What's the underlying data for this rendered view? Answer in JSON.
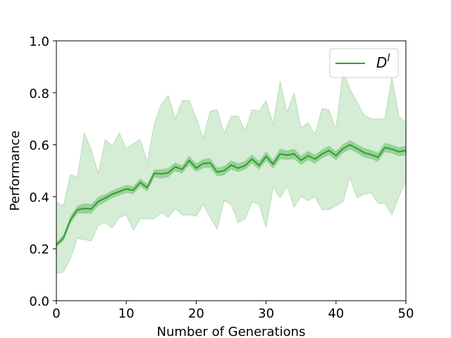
{
  "chart_data": {
    "type": "line",
    "title": "",
    "xlabel": "Number of Generations",
    "ylabel": "Performance",
    "xlim": [
      0,
      50
    ],
    "ylim": [
      0.0,
      1.0
    ],
    "xticks": [
      "0",
      "10",
      "20",
      "30",
      "40",
      "50"
    ],
    "yticks": [
      "0.0",
      "0.2",
      "0.4",
      "0.6",
      "0.8",
      "1.0"
    ],
    "grid": false,
    "legend_position": "top-right",
    "series": [
      {
        "name": "D",
        "name_superscript": "l",
        "color": "#2ca02c",
        "x": [
          0,
          1,
          2,
          3,
          4,
          5,
          6,
          7,
          8,
          9,
          10,
          11,
          12,
          13,
          14,
          15,
          16,
          17,
          18,
          19,
          20,
          21,
          22,
          23,
          24,
          25,
          26,
          27,
          28,
          29,
          30,
          31,
          32,
          33,
          34,
          35,
          36,
          37,
          38,
          39,
          40,
          41,
          42,
          43,
          44,
          45,
          46,
          47,
          48,
          49,
          50
        ],
        "mean": [
          0.215,
          0.24,
          0.31,
          0.35,
          0.355,
          0.353,
          0.382,
          0.395,
          0.41,
          0.42,
          0.43,
          0.425,
          0.455,
          0.435,
          0.49,
          0.488,
          0.492,
          0.515,
          0.505,
          0.54,
          0.51,
          0.528,
          0.53,
          0.495,
          0.5,
          0.522,
          0.51,
          0.52,
          0.545,
          0.52,
          0.556,
          0.525,
          0.565,
          0.56,
          0.565,
          0.54,
          0.558,
          0.545,
          0.565,
          0.578,
          0.558,
          0.585,
          0.6,
          0.585,
          0.57,
          0.562,
          0.552,
          0.59,
          0.583,
          0.573,
          0.578
        ],
        "ci_lower": [
          0.205,
          0.23,
          0.295,
          0.335,
          0.335,
          0.335,
          0.365,
          0.38,
          0.395,
          0.405,
          0.415,
          0.41,
          0.44,
          0.42,
          0.475,
          0.47,
          0.475,
          0.498,
          0.49,
          0.522,
          0.495,
          0.51,
          0.512,
          0.478,
          0.483,
          0.505,
          0.495,
          0.505,
          0.528,
          0.505,
          0.538,
          0.508,
          0.545,
          0.542,
          0.545,
          0.522,
          0.54,
          0.528,
          0.548,
          0.56,
          0.54,
          0.568,
          0.582,
          0.568,
          0.552,
          0.545,
          0.535,
          0.572,
          0.566,
          0.556,
          0.56
        ],
        "ci_upper": [
          0.225,
          0.255,
          0.325,
          0.365,
          0.375,
          0.372,
          0.4,
          0.41,
          0.425,
          0.435,
          0.445,
          0.44,
          0.47,
          0.45,
          0.505,
          0.505,
          0.51,
          0.532,
          0.52,
          0.558,
          0.528,
          0.545,
          0.548,
          0.512,
          0.518,
          0.54,
          0.528,
          0.538,
          0.562,
          0.538,
          0.574,
          0.542,
          0.585,
          0.578,
          0.585,
          0.558,
          0.576,
          0.562,
          0.582,
          0.596,
          0.576,
          0.602,
          0.618,
          0.602,
          0.588,
          0.58,
          0.57,
          0.608,
          0.6,
          0.59,
          0.596
        ],
        "band_lower": [
          0.105,
          0.11,
          0.16,
          0.24,
          0.235,
          0.23,
          0.29,
          0.3,
          0.28,
          0.32,
          0.33,
          0.27,
          0.315,
          0.315,
          0.315,
          0.34,
          0.32,
          0.355,
          0.33,
          0.33,
          0.325,
          0.37,
          0.32,
          0.275,
          0.385,
          0.37,
          0.3,
          0.315,
          0.38,
          0.37,
          0.28,
          0.435,
          0.395,
          0.44,
          0.36,
          0.4,
          0.385,
          0.4,
          0.35,
          0.35,
          0.365,
          0.38,
          0.475,
          0.395,
          0.41,
          0.415,
          0.375,
          0.375,
          0.33,
          0.4,
          0.46
        ],
        "band_upper": [
          0.38,
          0.365,
          0.485,
          0.475,
          0.645,
          0.58,
          0.49,
          0.62,
          0.595,
          0.645,
          0.585,
          0.605,
          0.62,
          0.535,
          0.68,
          0.755,
          0.79,
          0.7,
          0.77,
          0.77,
          0.705,
          0.625,
          0.73,
          0.735,
          0.645,
          0.71,
          0.71,
          0.655,
          0.735,
          0.73,
          0.77,
          0.68,
          0.845,
          0.725,
          0.8,
          0.665,
          0.685,
          0.64,
          0.74,
          0.735,
          0.66,
          0.885,
          0.815,
          0.765,
          0.715,
          0.7,
          0.7,
          0.7,
          0.86,
          0.71,
          0.685
        ]
      }
    ]
  }
}
